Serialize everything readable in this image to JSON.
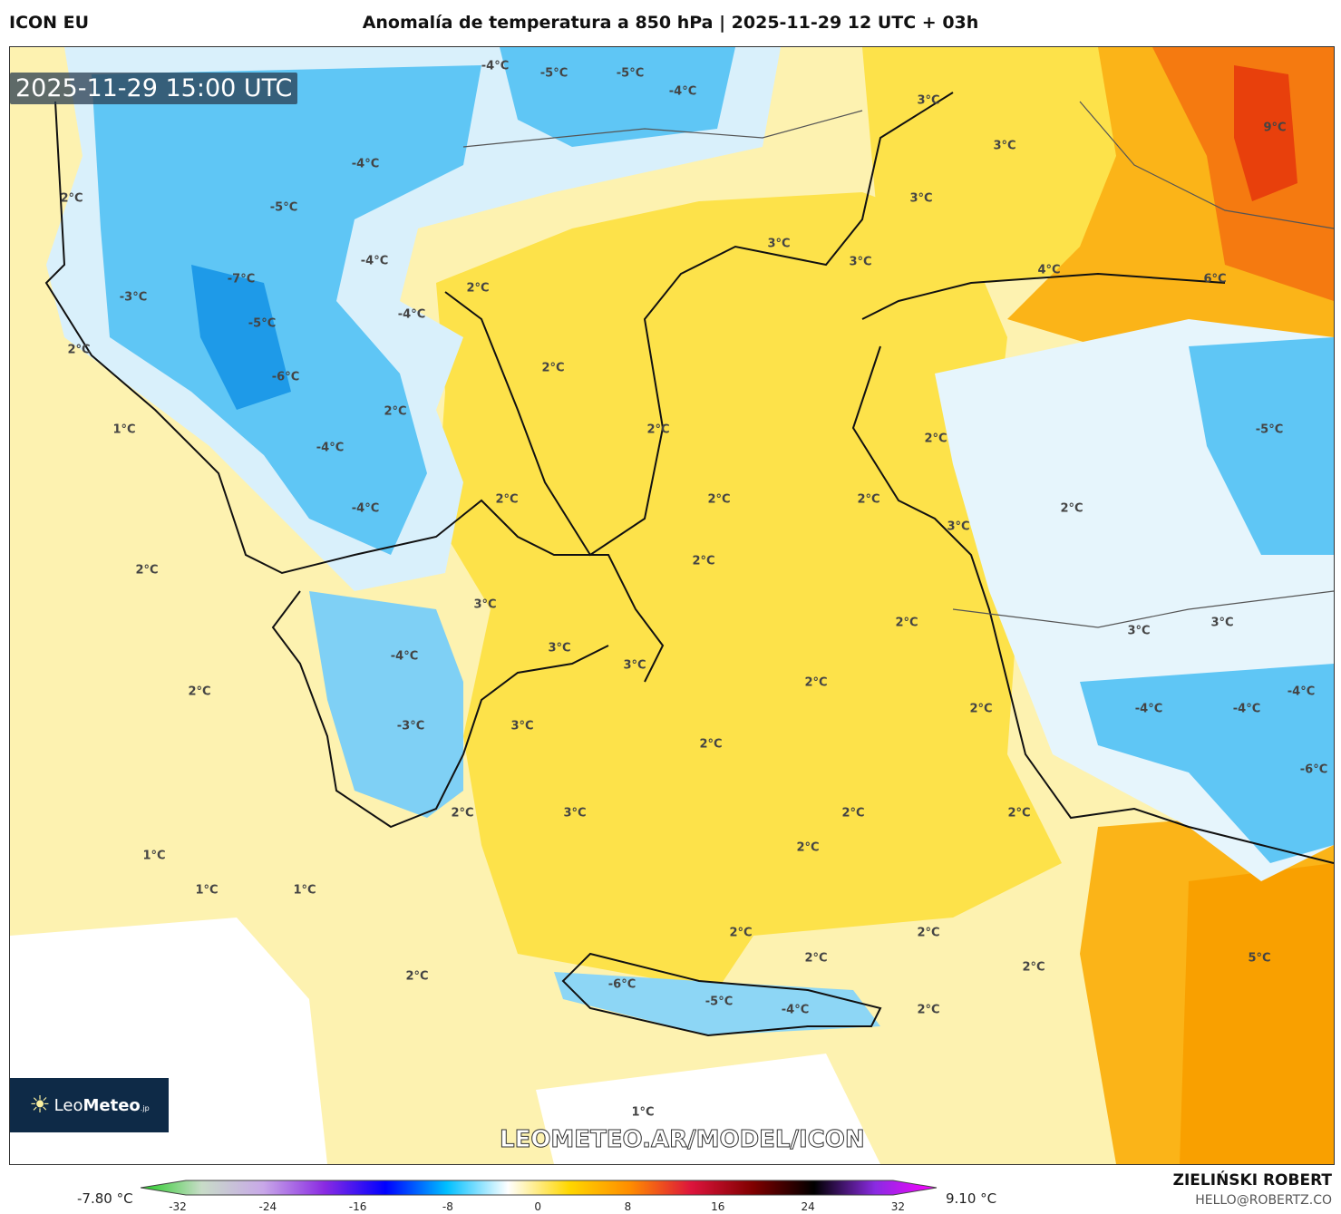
{
  "header": {
    "model": "ICON EU",
    "title": "Anomalía de temperatura a 850 hPa | 2025-11-29 12 UTC + 03h"
  },
  "map": {
    "valid_time": "2025-11-29 15:00 UTC",
    "watermark_url": "LEOMETEO.AR/MODEL/ICON",
    "logo_text": {
      "part1": "Leo",
      "part2": "Meteo",
      "suffix": ".jp"
    },
    "labels": [
      "-4°C",
      "-5°C",
      "-5°C",
      "-4°C",
      "3°C",
      "9°C",
      "3°C",
      "-4°C",
      "2°C",
      "-5°C",
      "3°C",
      "3°C",
      "3°C",
      "-4°C",
      "4°C",
      "6°C",
      "2°C",
      "-7°C",
      "-3°C",
      "-5°C",
      "-4°C",
      "2°C",
      "2°C",
      "-6°C",
      "2°C",
      "1°C",
      "2°C",
      "-5°C",
      "-4°C",
      "2°C",
      "2°C",
      "2°C",
      "2°C",
      "-4°C",
      "2°C",
      "3°C",
      "2°C",
      "2°C",
      "3°C",
      "2°C",
      "3°C",
      "3°C",
      "3°C",
      "3°C",
      "-4°C",
      "2°C",
      "2°C",
      "-4°C",
      "2°C",
      "-4°C",
      "-4°C",
      "-3°C",
      "3°C",
      "2°C",
      "-6°C",
      "2°C",
      "3°C",
      "2°C",
      "2°C",
      "2°C",
      "1°C",
      "1°C",
      "1°C",
      "2°C",
      "2°C",
      "5°C",
      "2°C",
      "2°C",
      "2°C",
      "-6°C",
      "-5°C",
      "-4°C",
      "2°C",
      "1°C"
    ]
  },
  "colorbar": {
    "min_value": "-7.80 °C",
    "max_value": "9.10 °C",
    "ticks": [
      "-32",
      "-24",
      "-16",
      "-8",
      "0",
      "8",
      "16",
      "24",
      "32"
    ],
    "colors": [
      "#22cc22",
      "#c8dcc8",
      "#c8a8e8",
      "#8a2be2",
      "#0000ff",
      "#00bfff",
      "#ffffff",
      "#ffd700",
      "#ff8c00",
      "#dc143c",
      "#800000",
      "#000000",
      "#8a2be2",
      "#ff00ff"
    ]
  },
  "footer": {
    "author": "ZIELIŃSKI ROBERT",
    "email": "HELLO@ROBERTZ.CO"
  }
}
